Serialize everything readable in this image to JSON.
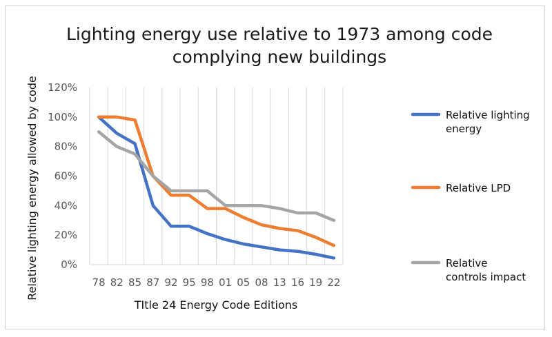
{
  "chart_data": {
    "type": "line",
    "title_lines": [
      "Lighting energy use relative to 1973 among code",
      "complying new buildings"
    ],
    "xlabel": "TItle 24 Energy Code Editions",
    "ylabel": "Relative lighting energy allowed by code",
    "categories": [
      "78",
      "82",
      "85",
      "87",
      "92",
      "95",
      "98",
      "01",
      "05",
      "08",
      "13",
      "16",
      "19",
      "22"
    ],
    "y_ticks": [
      "0%",
      "20%",
      "40%",
      "60%",
      "80%",
      "100%",
      "120%"
    ],
    "ylim": [
      0,
      120
    ],
    "grid": "vertical",
    "legend_position": "right",
    "series": [
      {
        "name_lines": [
          "Relative lighting",
          "energy"
        ],
        "color": "#4472C4",
        "values": [
          100,
          89,
          82,
          40,
          26,
          26,
          21,
          17,
          14,
          12,
          10,
          9,
          7,
          4.5
        ]
      },
      {
        "name_lines": [
          "Relative LPD"
        ],
        "color": "#ED7D31",
        "values": [
          100,
          100,
          98,
          60,
          47,
          47,
          38,
          38,
          32,
          27,
          24.5,
          23,
          18.5,
          13
        ]
      },
      {
        "name_lines": [
          "Relative",
          "controls impact"
        ],
        "color": "#A5A5A5",
        "values": [
          90,
          80,
          75,
          60,
          50,
          50,
          50,
          40,
          40,
          40,
          38,
          35,
          35,
          30
        ]
      }
    ]
  }
}
